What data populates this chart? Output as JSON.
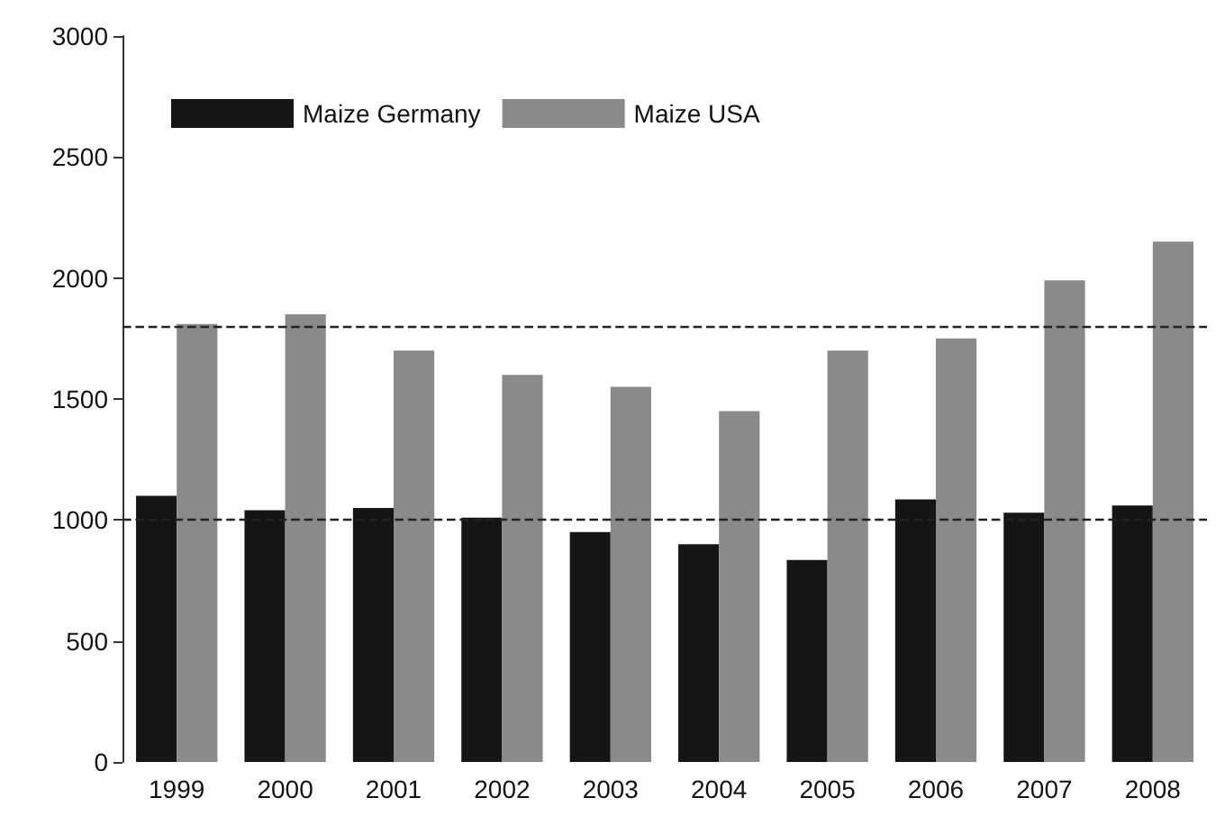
{
  "chart_data": {
    "type": "bar",
    "categories": [
      "1999",
      "2000",
      "2001",
      "2002",
      "2003",
      "2004",
      "2005",
      "2006",
      "2007",
      "2008"
    ],
    "series": [
      {
        "name": "Maize Germany",
        "color": "#151515",
        "values": [
          1100,
          1040,
          1050,
          1010,
          950,
          900,
          835,
          1085,
          1030,
          1060
        ]
      },
      {
        "name": "Maize USA",
        "color": "#8a8a8a",
        "values": [
          1810,
          1850,
          1700,
          1600,
          1550,
          1450,
          1700,
          1750,
          1990,
          2150
        ]
      }
    ],
    "ylim": [
      0,
      3000
    ],
    "yticks": [
      0,
      500,
      1000,
      1500,
      2000,
      2500,
      3000
    ],
    "grid": false,
    "legend": "top left",
    "ref_lines": [
      {
        "axis": "y",
        "value": 1800,
        "line_style": "dashed",
        "color": "#222222"
      },
      {
        "axis": "y",
        "value": 1000,
        "line_style": "dashed",
        "color": "#222222"
      }
    ]
  }
}
